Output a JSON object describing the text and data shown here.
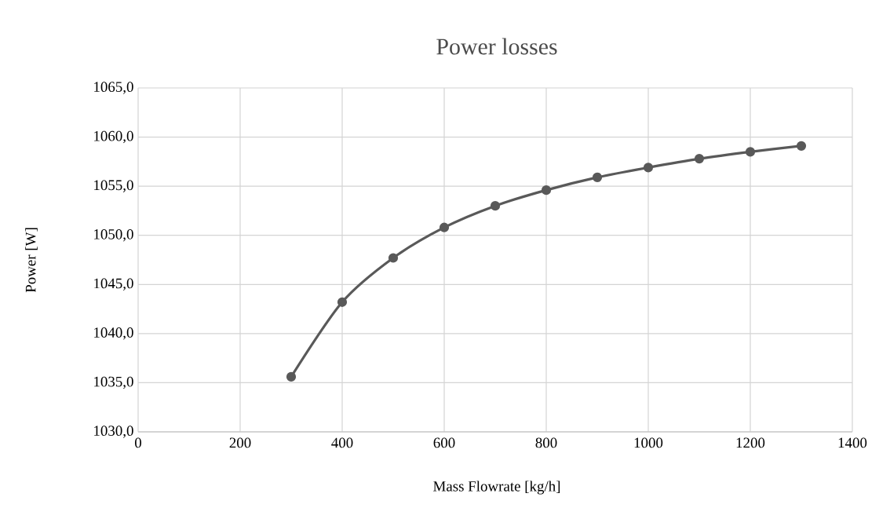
{
  "chart_data": {
    "type": "line",
    "title": "Power losses",
    "xlabel": "Mass Flowrate [kg/h]",
    "ylabel": "Power [W]",
    "x": [
      300,
      400,
      500,
      600,
      700,
      800,
      900,
      1000,
      1100,
      1200,
      1300
    ],
    "series": [
      {
        "color": "#595959",
        "values": [
          1035.6,
          1043.2,
          1047.7,
          1050.8,
          1053.0,
          1054.6,
          1055.9,
          1056.9,
          1057.8,
          1058.5,
          1059.1
        ]
      }
    ],
    "xlim": [
      0,
      1400
    ],
    "xticks": [
      0,
      200,
      400,
      600,
      800,
      1000,
      1200,
      1400
    ],
    "ylim": [
      1030,
      1065
    ],
    "yticks": [
      {
        "value": 1030,
        "label": "1030,0"
      },
      {
        "value": 1035,
        "label": "1035,0"
      },
      {
        "value": 1040,
        "label": "1040,0"
      },
      {
        "value": 1045,
        "label": "1045,0"
      },
      {
        "value": 1050,
        "label": "1050,0"
      },
      {
        "value": 1055,
        "label": "1055,0"
      },
      {
        "value": 1060,
        "label": "1060,0"
      },
      {
        "value": 1065,
        "label": "1065,0"
      }
    ],
    "grid": true,
    "marker": "circle",
    "line_style": "solid",
    "legend": false
  }
}
